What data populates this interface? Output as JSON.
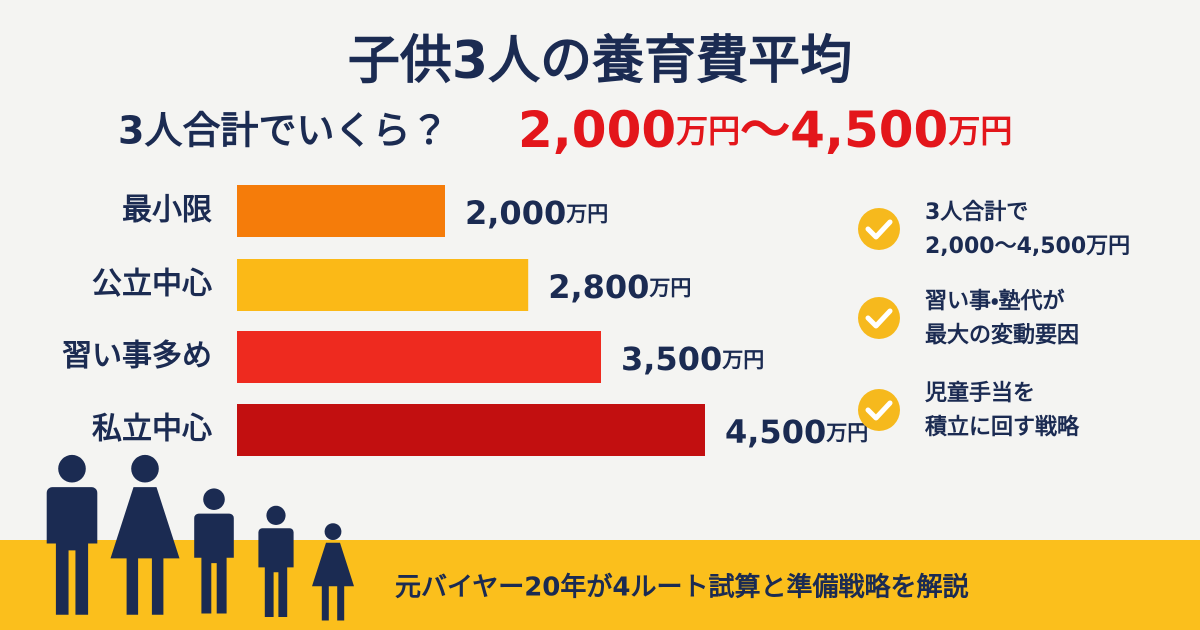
{
  "chart_data": {
    "type": "bar",
    "orientation": "horizontal",
    "title": "子供3人の養育費平均",
    "subtitle": "3人合計でいくら？",
    "highlight": [
      "2,000",
      "万円",
      "〜4,500",
      "万円"
    ],
    "categories": [
      "最小限",
      "公立中心",
      "習い事多め",
      "私立中心"
    ],
    "values": [
      2000,
      2800,
      3500,
      4500
    ],
    "value_labels": [
      "2,000",
      "2,800",
      "3,500",
      "4,500"
    ],
    "unit": "万円",
    "colors": [
      "#f57c0a",
      "#fbb917",
      "#ee2a1f",
      "#c20f10"
    ]
  },
  "notes": [
    [
      "3人合計で",
      "2,000〜4,500万円"
    ],
    [
      "習い事・塾代が",
      "最大の変動要因"
    ],
    [
      "児童手当を",
      "積立に回す戦略"
    ]
  ],
  "footer": "元バイヤー20年が4ルート試算と準備戦略を解説"
}
